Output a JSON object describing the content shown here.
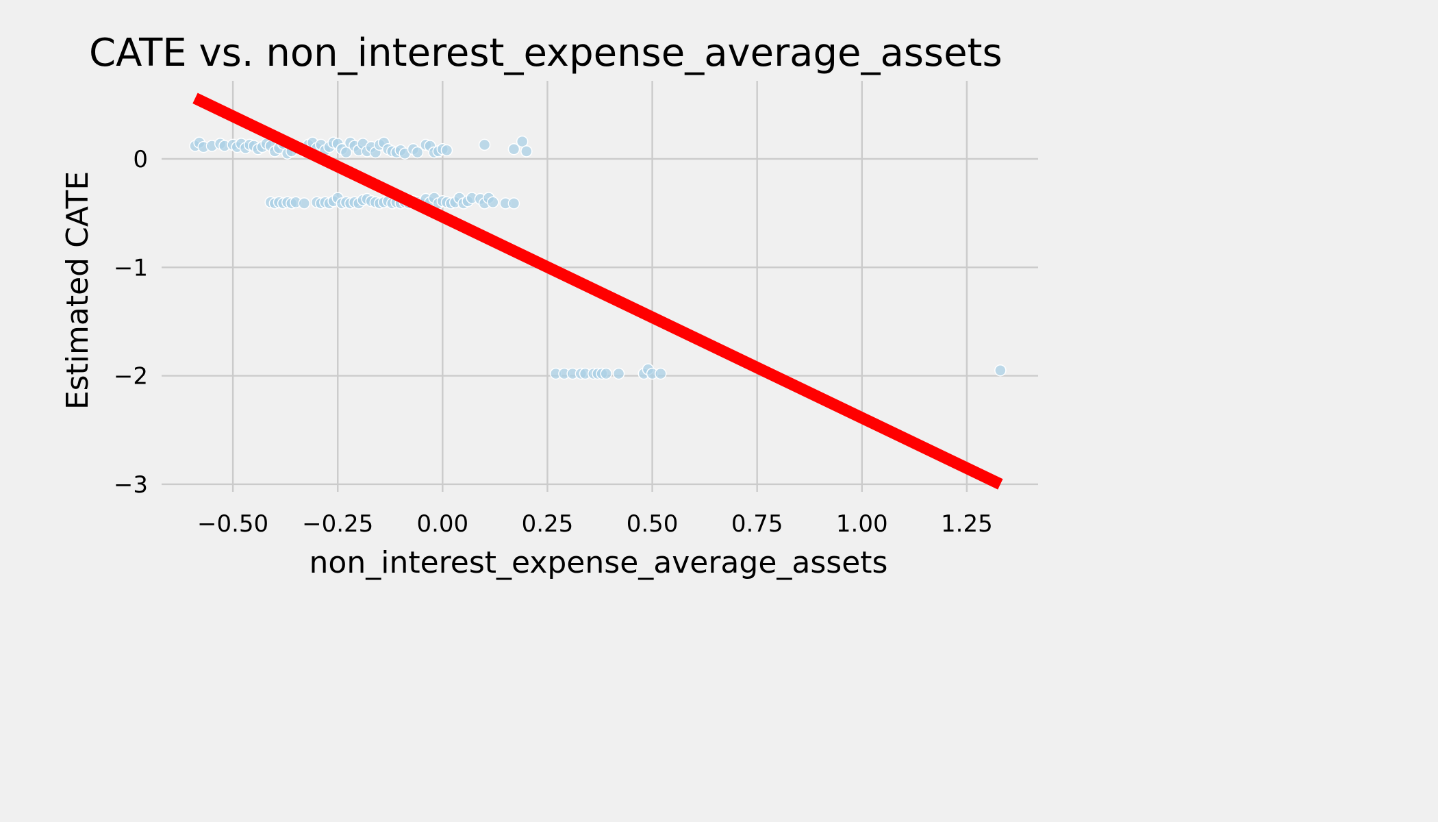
{
  "chart_data": {
    "type": "scatter",
    "title": "CATE vs. non_interest_expense_average_assets",
    "xlabel": "non_interest_expense_average_assets",
    "ylabel": "Estimated CATE",
    "xlim": [
      -0.67,
      1.42
    ],
    "ylim": [
      -3.07,
      0.72
    ],
    "xticks": [
      -0.5,
      -0.25,
      0.0,
      0.25,
      0.5,
      0.75,
      1.0,
      1.25
    ],
    "xtick_labels": [
      "−0.50",
      "−0.25",
      "0.00",
      "0.25",
      "0.50",
      "0.75",
      "1.00",
      "1.25"
    ],
    "yticks": [
      0,
      -1,
      -2,
      -3
    ],
    "ytick_labels": [
      "0",
      "−1",
      "−2",
      "−3"
    ],
    "grid": true,
    "background": "#f0f0f0",
    "point_color": "#abd0e6",
    "line_color": "#ff0000",
    "trend_line": {
      "x": [
        -0.59,
        1.33
      ],
      "y": [
        0.56,
        -3.0
      ]
    },
    "series": [
      {
        "points": [
          [
            -0.59,
            0.12
          ],
          [
            -0.58,
            0.15
          ],
          [
            -0.57,
            0.11
          ],
          [
            -0.55,
            0.12
          ],
          [
            -0.53,
            0.14
          ],
          [
            -0.52,
            0.12
          ],
          [
            -0.5,
            0.13
          ],
          [
            -0.49,
            0.11
          ],
          [
            -0.48,
            0.14
          ],
          [
            -0.47,
            0.1
          ],
          [
            -0.46,
            0.13
          ],
          [
            -0.45,
            0.12
          ],
          [
            -0.44,
            0.09
          ],
          [
            -0.43,
            0.11
          ],
          [
            -0.42,
            0.14
          ],
          [
            -0.41,
            0.12
          ],
          [
            -0.4,
            0.07
          ],
          [
            -0.39,
            0.1
          ],
          [
            -0.38,
            0.14
          ],
          [
            -0.37,
            0.05
          ],
          [
            -0.36,
            0.07
          ],
          [
            -0.35,
            0.12
          ],
          [
            -0.34,
            0.1
          ],
          [
            -0.33,
            0.07
          ],
          [
            -0.32,
            0.13
          ],
          [
            -0.31,
            0.15
          ],
          [
            -0.3,
            0.1
          ],
          [
            -0.29,
            0.13
          ],
          [
            -0.28,
            0.08
          ],
          [
            -0.27,
            0.11
          ],
          [
            -0.26,
            0.15
          ],
          [
            -0.25,
            0.14
          ],
          [
            -0.24,
            0.09
          ],
          [
            -0.23,
            0.06
          ],
          [
            -0.22,
            0.15
          ],
          [
            -0.21,
            0.12
          ],
          [
            -0.2,
            0.08
          ],
          [
            -0.19,
            0.14
          ],
          [
            -0.18,
            0.07
          ],
          [
            -0.17,
            0.11
          ],
          [
            -0.16,
            0.06
          ],
          [
            -0.15,
            0.13
          ],
          [
            -0.14,
            0.15
          ],
          [
            -0.13,
            0.09
          ],
          [
            -0.12,
            0.07
          ],
          [
            -0.11,
            0.06
          ],
          [
            -0.1,
            0.08
          ],
          [
            -0.09,
            0.05
          ],
          [
            -0.07,
            0.09
          ],
          [
            -0.06,
            0.06
          ],
          [
            -0.04,
            0.13
          ],
          [
            -0.03,
            0.12
          ],
          [
            -0.02,
            0.06
          ],
          [
            -0.01,
            0.07
          ],
          [
            0.0,
            0.09
          ],
          [
            0.01,
            0.08
          ],
          [
            0.1,
            0.13
          ],
          [
            0.17,
            0.09
          ],
          [
            0.19,
            0.16
          ],
          [
            0.2,
            0.07
          ],
          [
            -0.41,
            -0.4
          ],
          [
            -0.4,
            -0.41
          ],
          [
            -0.39,
            -0.4
          ],
          [
            -0.38,
            -0.41
          ],
          [
            -0.37,
            -0.4
          ],
          [
            -0.36,
            -0.41
          ],
          [
            -0.35,
            -0.4
          ],
          [
            -0.33,
            -0.41
          ],
          [
            -0.3,
            -0.4
          ],
          [
            -0.29,
            -0.41
          ],
          [
            -0.28,
            -0.4
          ],
          [
            -0.27,
            -0.41
          ],
          [
            -0.26,
            -0.39
          ],
          [
            -0.25,
            -0.36
          ],
          [
            -0.24,
            -0.41
          ],
          [
            -0.23,
            -0.4
          ],
          [
            -0.22,
            -0.41
          ],
          [
            -0.21,
            -0.4
          ],
          [
            -0.2,
            -0.41
          ],
          [
            -0.19,
            -0.38
          ],
          [
            -0.18,
            -0.37
          ],
          [
            -0.17,
            -0.39
          ],
          [
            -0.16,
            -0.4
          ],
          [
            -0.15,
            -0.41
          ],
          [
            -0.14,
            -0.4
          ],
          [
            -0.13,
            -0.39
          ],
          [
            -0.12,
            -0.41
          ],
          [
            -0.11,
            -0.4
          ],
          [
            -0.1,
            -0.41
          ],
          [
            -0.09,
            -0.4
          ],
          [
            -0.08,
            -0.41
          ],
          [
            -0.07,
            -0.39
          ],
          [
            -0.06,
            -0.4
          ],
          [
            -0.05,
            -0.41
          ],
          [
            -0.04,
            -0.37
          ],
          [
            -0.03,
            -0.4
          ],
          [
            -0.02,
            -0.36
          ],
          [
            -0.01,
            -0.41
          ],
          [
            0.0,
            -0.39
          ],
          [
            0.01,
            -0.4
          ],
          [
            0.02,
            -0.41
          ],
          [
            0.03,
            -0.4
          ],
          [
            0.04,
            -0.36
          ],
          [
            0.05,
            -0.41
          ],
          [
            0.06,
            -0.39
          ],
          [
            0.07,
            -0.36
          ],
          [
            0.09,
            -0.37
          ],
          [
            0.1,
            -0.41
          ],
          [
            0.11,
            -0.36
          ],
          [
            0.12,
            -0.4
          ],
          [
            0.15,
            -0.41
          ],
          [
            0.17,
            -0.41
          ],
          [
            0.27,
            -1.98
          ],
          [
            0.29,
            -1.98
          ],
          [
            0.31,
            -1.98
          ],
          [
            0.33,
            -1.98
          ],
          [
            0.34,
            -1.98
          ],
          [
            0.36,
            -1.98
          ],
          [
            0.37,
            -1.98
          ],
          [
            0.38,
            -1.98
          ],
          [
            0.39,
            -1.98
          ],
          [
            0.42,
            -1.98
          ],
          [
            0.48,
            -1.98
          ],
          [
            0.49,
            -1.94
          ],
          [
            0.5,
            -1.98
          ],
          [
            0.52,
            -1.98
          ],
          [
            1.33,
            -1.95
          ]
        ]
      }
    ]
  }
}
